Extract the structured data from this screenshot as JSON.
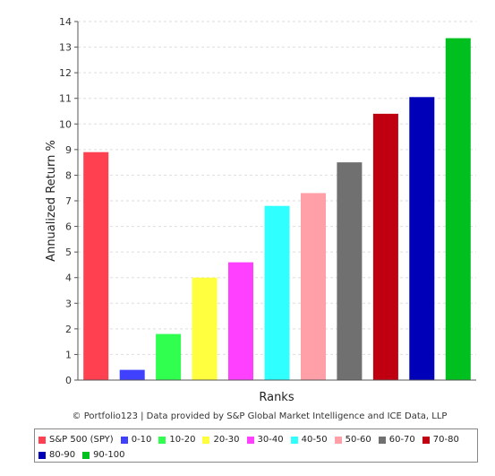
{
  "chart_data": {
    "type": "bar",
    "categories": [
      "S&P 500 (SPY)",
      "0-10",
      "10-20",
      "20-30",
      "30-40",
      "40-50",
      "50-60",
      "60-70",
      "70-80",
      "80-90",
      "90-100"
    ],
    "values": [
      8.9,
      0.4,
      1.8,
      4.0,
      4.6,
      6.8,
      7.3,
      8.5,
      10.4,
      11.05,
      13.35
    ],
    "colors": [
      "#ff4050",
      "#4040ff",
      "#30ff50",
      "#ffff40",
      "#ff40ff",
      "#30ffff",
      "#ffa0a8",
      "#707070",
      "#c00010",
      "#0000b8",
      "#00c020"
    ],
    "xlabel": "Ranks",
    "ylabel": "Annualized Return %",
    "ylim": [
      0,
      14
    ],
    "yticks": [
      "0",
      "1",
      "2",
      "3",
      "4",
      "5",
      "6",
      "7",
      "8",
      "9",
      "10",
      "11",
      "12",
      "13",
      "14"
    ],
    "grid": true,
    "legend_position": "bottom"
  },
  "credit": "© Portfolio123 | Data provided by S&P Global Market Intelligence and ICE Data, LLP"
}
